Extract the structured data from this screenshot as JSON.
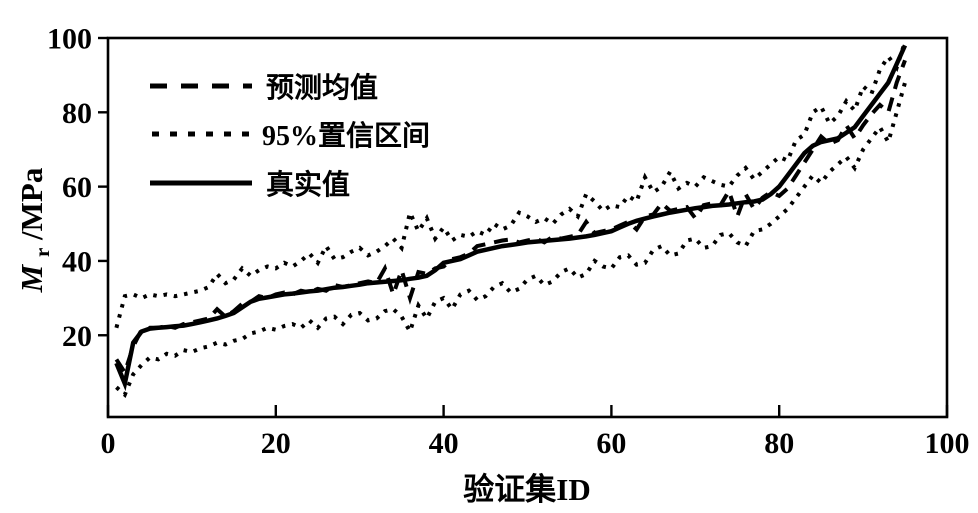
{
  "figure": {
    "xlabel": "验证集ID",
    "ylabel": {
      "main": "M",
      "sub": "r",
      "unit": "/MPa"
    },
    "x_ticks": [
      0,
      20,
      40,
      60,
      80,
      100
    ],
    "y_ticks": [
      20,
      40,
      60,
      80,
      100
    ],
    "legend": [
      {
        "label": "预测均值",
        "style": "dashed"
      },
      {
        "label": "95%置信区间",
        "style": "dotted"
      },
      {
        "label": "真实值",
        "style": "solid"
      }
    ],
    "line_color": "#000000",
    "background": "#ffffff"
  },
  "chart_data": {
    "type": "line",
    "title": "",
    "xlabel": "验证集ID",
    "ylabel": "Mr/MPa",
    "xlim": [
      0,
      100
    ],
    "ylim": [
      0,
      100
    ],
    "grid": false,
    "legend_position": "upper-left-inside",
    "x": [
      1,
      2,
      3,
      4,
      5,
      6,
      7,
      8,
      9,
      10,
      11,
      12,
      13,
      14,
      15,
      16,
      17,
      18,
      19,
      20,
      21,
      22,
      23,
      24,
      25,
      26,
      27,
      28,
      29,
      30,
      31,
      32,
      33,
      34,
      35,
      36,
      37,
      38,
      39,
      40,
      41,
      42,
      43,
      44,
      45,
      46,
      47,
      48,
      49,
      50,
      51,
      52,
      53,
      54,
      55,
      56,
      57,
      58,
      59,
      60,
      61,
      62,
      63,
      64,
      65,
      66,
      67,
      68,
      69,
      70,
      71,
      72,
      73,
      74,
      75,
      76,
      77,
      78,
      79,
      80,
      81,
      82,
      83,
      84,
      85,
      86,
      87,
      88,
      89,
      90,
      91,
      92,
      93,
      94,
      95
    ],
    "series": [
      {
        "name": "预测均值",
        "key": "prediction-mean",
        "style": "dashed",
        "values": [
          13.5,
          10,
          17,
          21.5,
          22,
          22,
          22.5,
          22,
          23,
          23.5,
          24,
          24.5,
          27,
          25,
          26.5,
          28.5,
          29,
          30.5,
          30,
          31,
          31.5,
          31,
          32,
          31.5,
          32.5,
          32,
          33.5,
          33,
          33.5,
          34,
          34.5,
          34,
          38,
          31,
          37.5,
          30,
          37,
          36.5,
          38,
          38.5,
          40.5,
          41,
          42,
          44,
          44.5,
          45,
          45.5,
          45.8,
          45,
          45.5,
          46,
          45,
          46.5,
          46,
          46.5,
          47,
          50.5,
          47.5,
          48,
          48.5,
          49.5,
          50.5,
          48.5,
          52,
          52.5,
          55.5,
          53.5,
          54,
          54.5,
          51.5,
          55,
          55.5,
          55,
          58.8,
          52,
          58,
          54,
          57,
          58.5,
          57.5,
          59.5,
          63,
          66.5,
          70,
          73.5,
          71.5,
          72.5,
          76.5,
          73,
          76.5,
          79.5,
          82,
          80,
          88,
          94
        ]
      },
      {
        "name": "95%置信区间上界",
        "key": "ci-upper",
        "style": "dotted",
        "values": [
          22,
          30.5,
          31,
          30,
          31,
          30.5,
          31,
          30.5,
          31,
          31.5,
          32,
          33,
          36.5,
          34,
          35,
          38,
          36,
          37.5,
          38.5,
          38,
          39.5,
          38.5,
          40,
          42,
          39.5,
          44,
          40.5,
          41,
          42.5,
          43.5,
          41.5,
          42.5,
          44,
          46,
          43.5,
          53,
          48,
          51.5,
          46,
          49,
          45.5,
          47,
          46.5,
          48,
          47,
          50,
          48.5,
          49.5,
          53,
          52,
          50.5,
          51.5,
          50,
          52.5,
          54,
          52,
          58,
          56,
          53.5,
          55,
          54.5,
          57.5,
          56,
          62.5,
          58.5,
          60,
          64,
          59.5,
          61,
          60,
          62.5,
          61.5,
          60.5,
          60,
          63,
          65,
          62,
          64,
          66,
          68,
          67,
          72.5,
          74,
          80,
          81.5,
          77,
          79,
          83,
          80.5,
          87,
          85,
          91.5,
          95,
          92,
          99
        ]
      },
      {
        "name": "95%置信区间下界",
        "key": "ci-lower",
        "style": "dotted",
        "values": [
          6,
          4,
          9.5,
          12,
          14,
          13.5,
          15,
          14.5,
          16,
          15.5,
          16.5,
          17,
          18,
          17.5,
          18.5,
          19,
          20.5,
          21,
          22,
          21.5,
          22.5,
          23,
          22,
          24,
          22,
          24.5,
          25,
          23,
          25.5,
          26,
          24,
          24.5,
          26.5,
          27,
          25,
          21,
          28,
          24.5,
          29,
          30,
          27,
          31,
          32,
          29.5,
          30.5,
          33,
          34,
          31.5,
          32.5,
          35,
          36,
          33.5,
          34.5,
          37,
          38,
          35.5,
          36.5,
          40,
          38.5,
          38,
          41,
          41.5,
          39,
          39.5,
          43,
          44,
          41.5,
          42,
          45.5,
          46,
          43.5,
          44,
          47,
          47.5,
          45,
          44,
          48,
          48.5,
          50,
          52,
          54,
          57,
          60,
          63,
          61,
          64,
          66,
          68,
          65,
          70,
          73,
          76,
          72,
          80,
          88
        ]
      },
      {
        "name": "真实值",
        "key": "true-value",
        "style": "solid",
        "values": [
          12.5,
          7,
          18,
          21,
          21.8,
          22,
          22.2,
          22.4,
          22.6,
          23,
          23.5,
          24,
          24.5,
          25.2,
          26,
          27.5,
          29,
          29.8,
          30.2,
          30.6,
          31,
          31.2,
          31.5,
          31.8,
          32,
          32.4,
          32.8,
          33,
          33.3,
          33.6,
          34,
          34.2,
          34.4,
          34.6,
          34.8,
          35.2,
          35.5,
          36,
          37.5,
          39.5,
          40,
          40.5,
          41.5,
          42.5,
          43,
          43.5,
          44,
          44.3,
          44.6,
          45,
          45.2,
          45.4,
          45.6,
          45.8,
          46,
          46.3,
          46.6,
          47,
          47.5,
          48,
          49,
          50,
          50.8,
          51.4,
          52,
          52.5,
          53,
          53.4,
          53.8,
          54.2,
          54.5,
          54.8,
          55,
          55.2,
          55.5,
          55.8,
          56,
          56.5,
          58,
          60,
          63,
          66,
          69,
          71,
          72,
          72.5,
          73,
          74.5,
          76,
          79,
          82,
          85,
          88,
          93,
          98
        ]
      }
    ]
  }
}
